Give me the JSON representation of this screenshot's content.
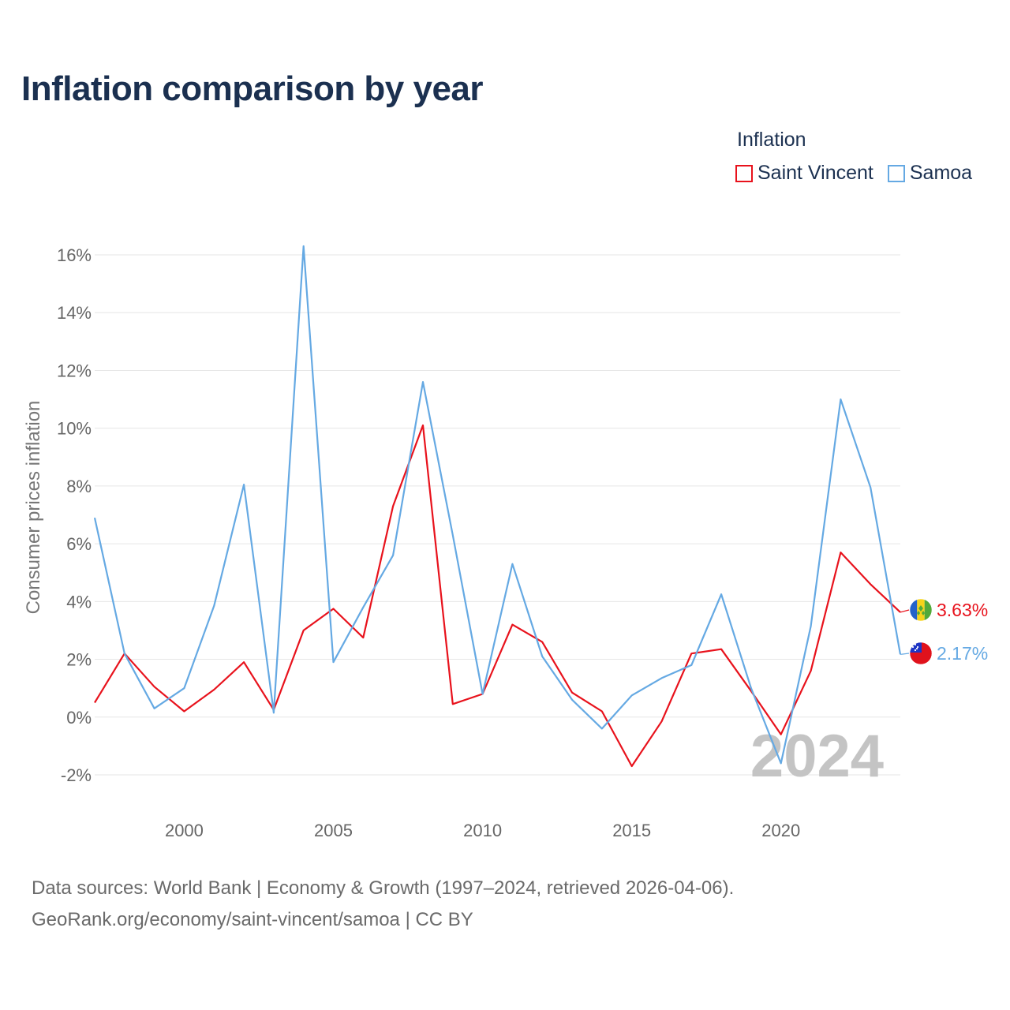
{
  "header": {
    "title": "Inflation comparison by year"
  },
  "legend": {
    "title": "Inflation",
    "items": [
      {
        "label": "Saint Vincent",
        "color": "#e8121c"
      },
      {
        "label": "Samoa",
        "color": "#65a9e3"
      }
    ]
  },
  "chart_data": {
    "type": "line",
    "title": "Inflation comparison by year",
    "ylabel": "Consumer prices inflation",
    "xlabel": "",
    "xlim": [
      1997,
      2024
    ],
    "ylim": [
      -2,
      16
    ],
    "yticks": [
      -2,
      0,
      2,
      4,
      6,
      8,
      10,
      12,
      14,
      16
    ],
    "ytick_labels": [
      "-2%",
      "0%",
      "2%",
      "4%",
      "6%",
      "8%",
      "10%",
      "12%",
      "14%",
      "16%"
    ],
    "xticks": [
      2000,
      2005,
      2010,
      2015,
      2020
    ],
    "xtick_labels": [
      "2000",
      "2005",
      "2010",
      "2015",
      "2020"
    ],
    "x": [
      1997,
      1998,
      1999,
      2000,
      2001,
      2002,
      2003,
      2004,
      2005,
      2006,
      2007,
      2008,
      2009,
      2010,
      2011,
      2012,
      2013,
      2014,
      2015,
      2016,
      2017,
      2018,
      2019,
      2020,
      2021,
      2022,
      2023,
      2024
    ],
    "series": [
      {
        "name": "Saint Vincent",
        "color": "#e8121c",
        "end_label": "3.63%",
        "values": [
          0.5,
          2.2,
          1.05,
          0.2,
          0.95,
          1.9,
          0.25,
          3.0,
          3.75,
          2.75,
          7.3,
          10.1,
          0.45,
          0.8,
          3.2,
          2.6,
          0.85,
          0.2,
          -1.7,
          -0.15,
          2.2,
          2.35,
          0.9,
          -0.6,
          1.6,
          5.7,
          4.6,
          3.63
        ]
      },
      {
        "name": "Samoa",
        "color": "#65a9e3",
        "end_label": "2.17%",
        "values": [
          6.9,
          2.2,
          0.3,
          1.0,
          3.85,
          8.05,
          0.15,
          16.3,
          1.9,
          3.8,
          5.6,
          11.6,
          6.3,
          0.8,
          5.3,
          2.1,
          0.6,
          -0.4,
          0.75,
          1.35,
          1.8,
          4.25,
          1.0,
          -1.6,
          3.15,
          11.0,
          7.95,
          2.17
        ]
      }
    ],
    "year_watermark": "2024"
  },
  "footer": {
    "line1": "Data sources: World Bank | Economy & Growth (1997–2024, retrieved 2026-04-06).",
    "line2": "GeoRank.org/economy/saint-vincent/samoa | CC BY"
  }
}
